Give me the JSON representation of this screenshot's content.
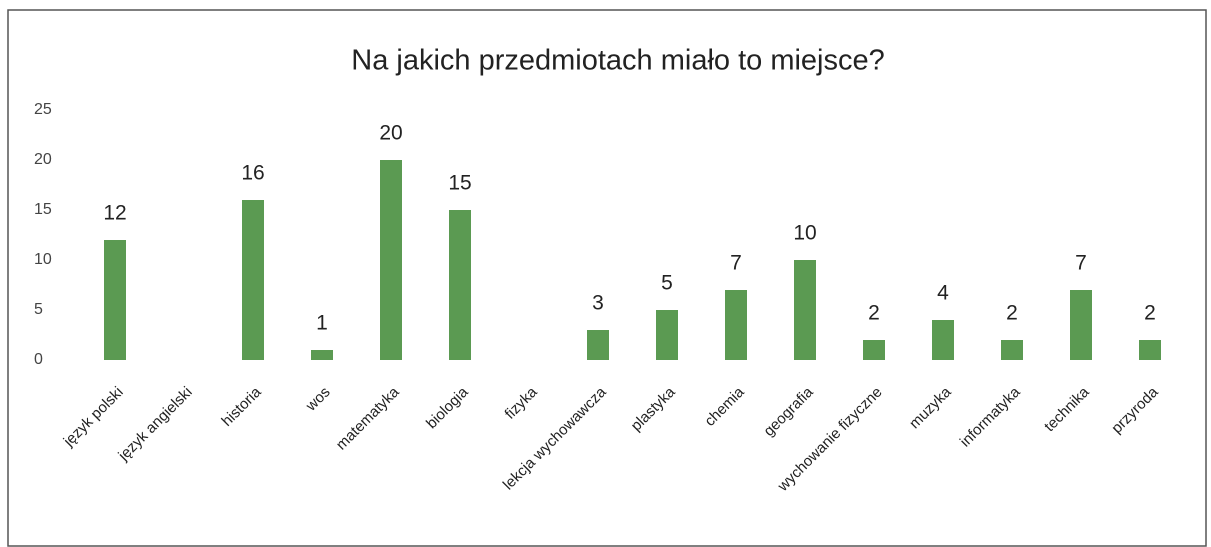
{
  "chart_data": {
    "type": "bar",
    "title": "Na jakich przedmiotach miało to miejsce?",
    "categories": [
      "język polski",
      "język angielski",
      "historia",
      "wos",
      "matematyka",
      "biologia",
      "fizyka",
      "lekcja wychowawcza",
      "plastyka",
      "chemia",
      "geografia",
      "wychowanie fizyczne",
      "muzyka",
      "informatyka",
      "technika",
      "przyroda"
    ],
    "values": [
      12,
      null,
      16,
      1,
      20,
      15,
      null,
      3,
      5,
      7,
      10,
      2,
      4,
      2,
      7,
      2
    ],
    "color": "#5b9a52",
    "ylim": [
      0,
      25
    ],
    "yticks": [
      0,
      5,
      10,
      15,
      20,
      25
    ],
    "grid": false
  }
}
